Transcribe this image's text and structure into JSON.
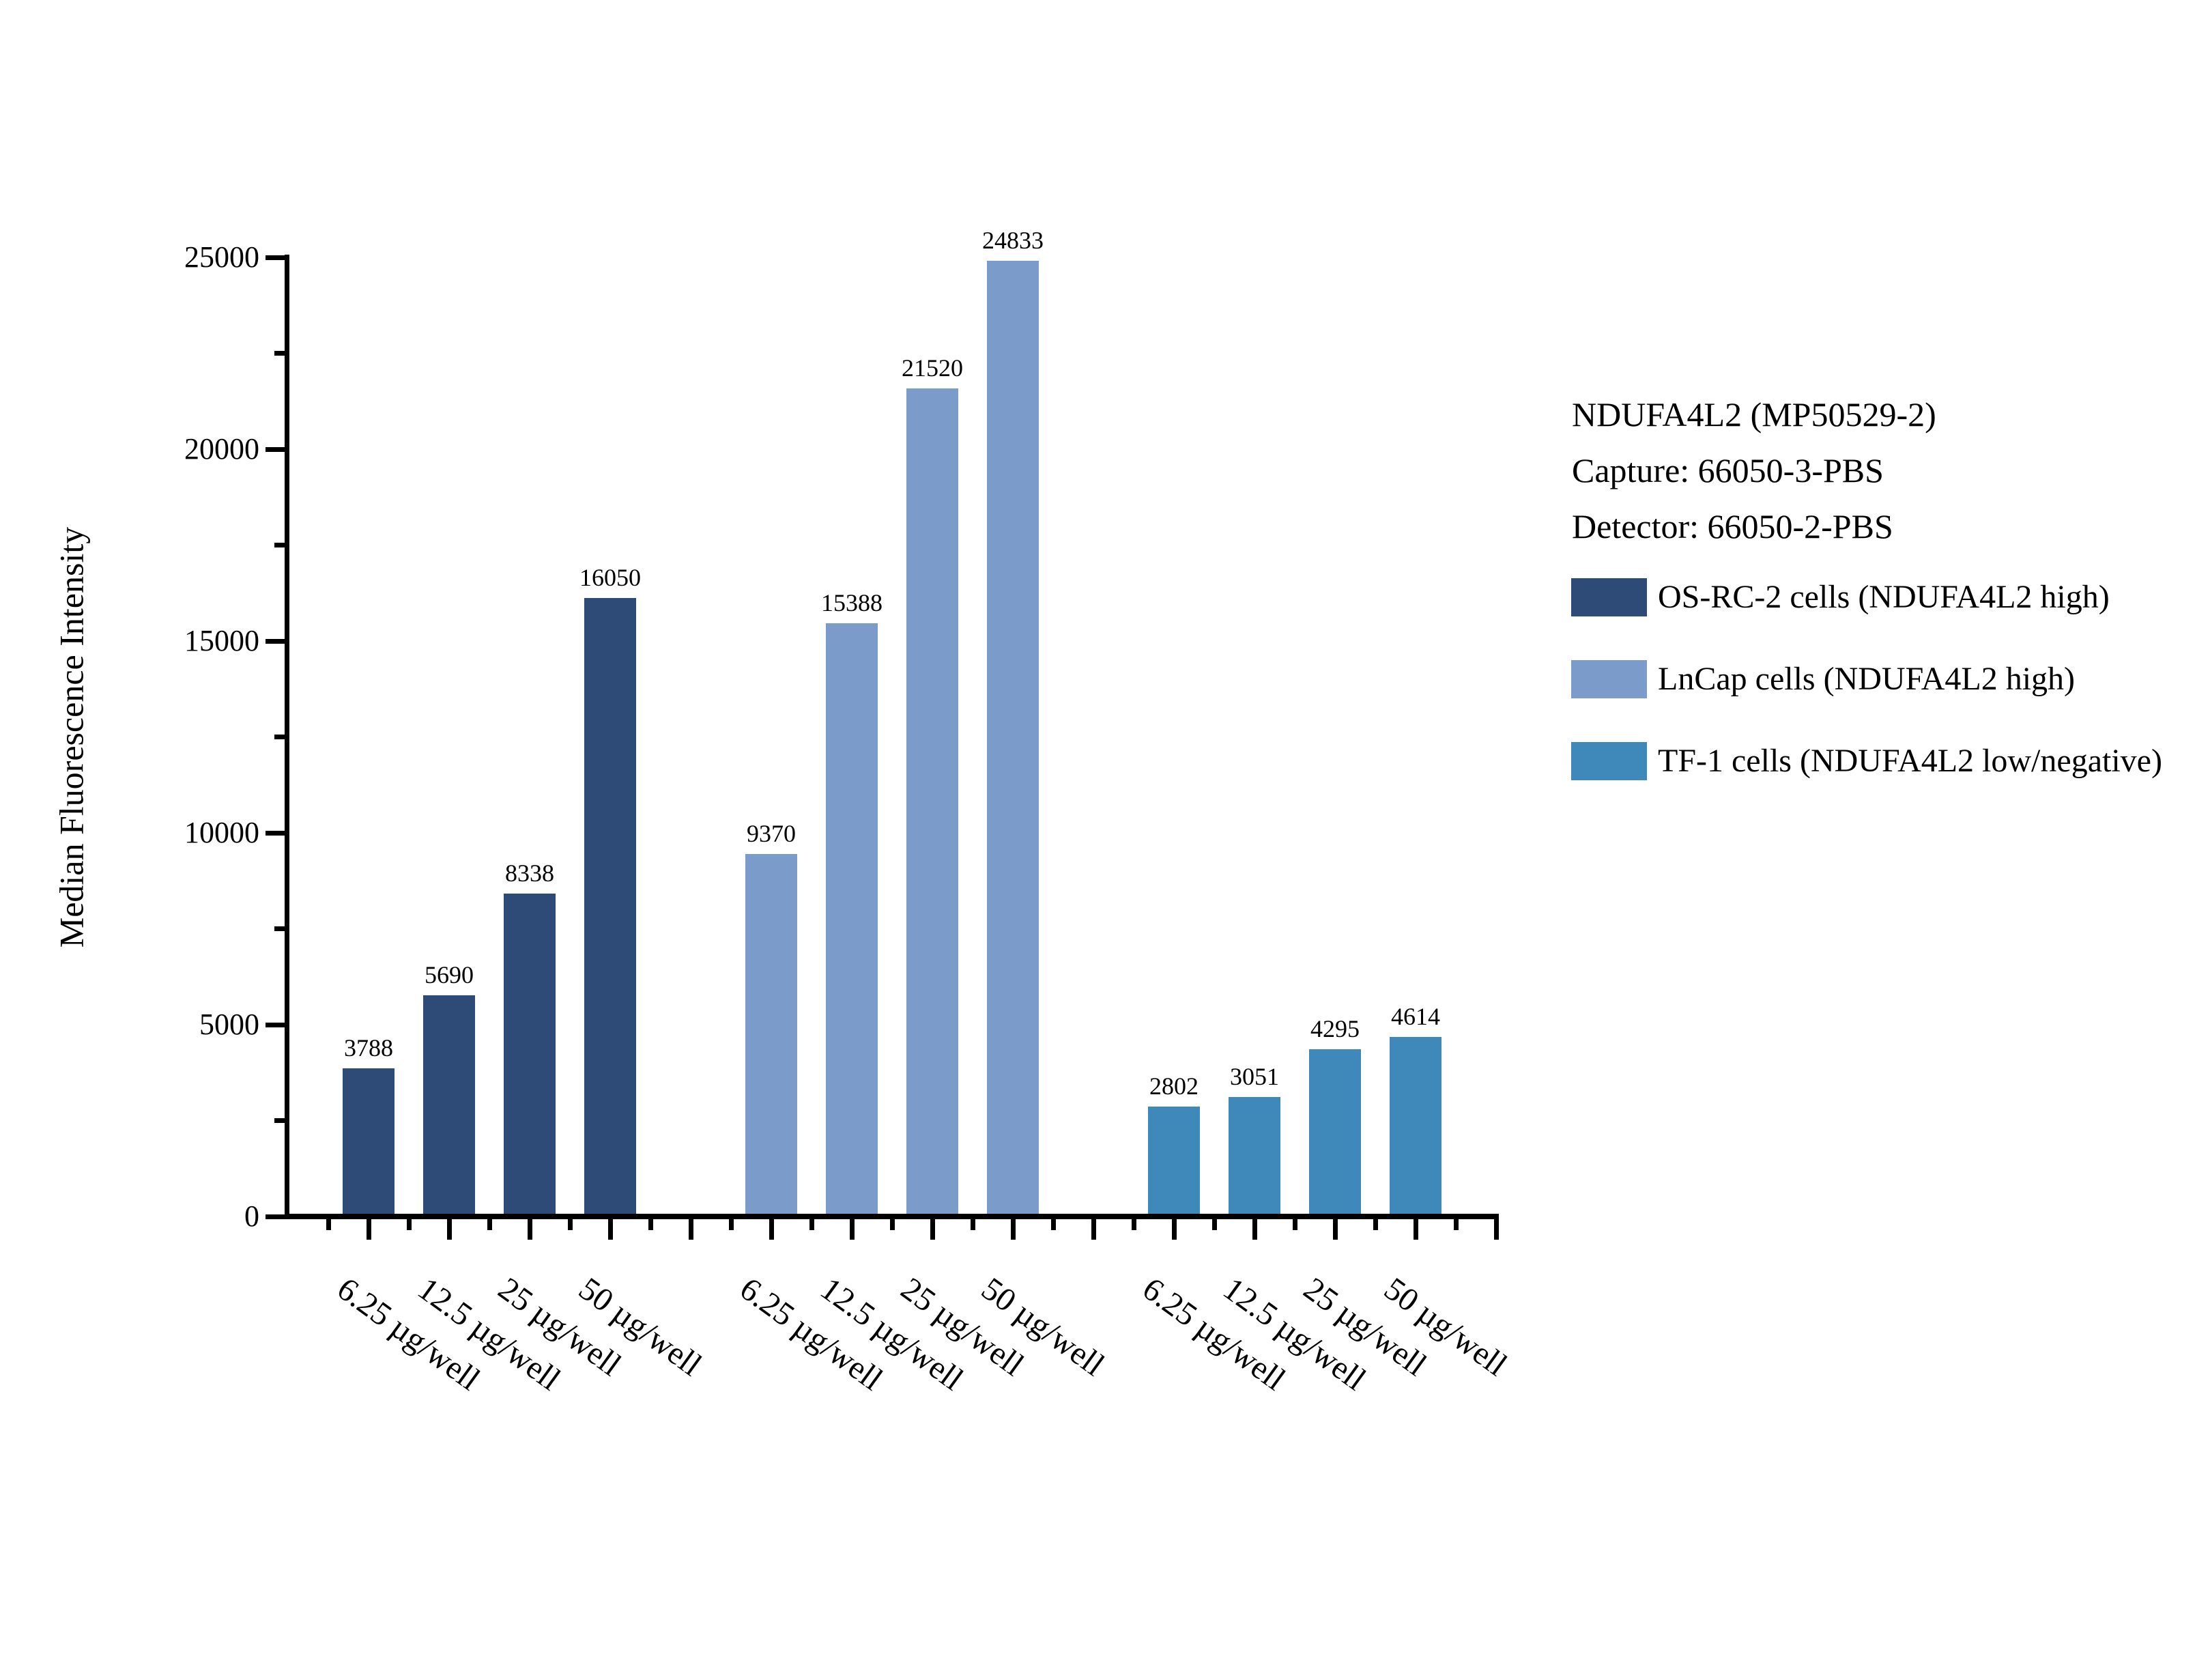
{
  "chart_data": {
    "type": "bar",
    "title": "",
    "ylabel": "Median Fluorescence Intensity",
    "xlabel": "",
    "ylim": [
      0,
      25000
    ],
    "y_major_tick": 5000,
    "y_minor_tick": 2500,
    "grid": false,
    "legend_position": "right",
    "bar_value_labels": true,
    "categories": [
      "6.25 µg/well",
      "12.5 µg/well",
      "25 µg/well",
      "50 µg/well"
    ],
    "series": [
      {
        "name": "OS-RC-2 cells (NDUFA4L2 high)",
        "color": "#2E4B78",
        "values": [
          3788,
          5690,
          8338,
          16050
        ]
      },
      {
        "name": "LnCap cells (NDUFA4L2 high)",
        "color": "#7B9CCB",
        "values": [
          9370,
          15388,
          21520,
          24833
        ]
      },
      {
        "name": "TF-1 cells (NDUFA4L2 low/negative)",
        "color": "#3E89B9",
        "values": [
          2802,
          3051,
          4295,
          4614
        ]
      }
    ],
    "annotation": {
      "lines": [
        "NDUFA4L2 (MP50529-2)",
        "Capture: 66050-3-PBS",
        "Detector: 66050-2-PBS"
      ]
    },
    "colors": {
      "axis": "#000000",
      "text": "#000000",
      "background": "#FFFFFF"
    }
  }
}
